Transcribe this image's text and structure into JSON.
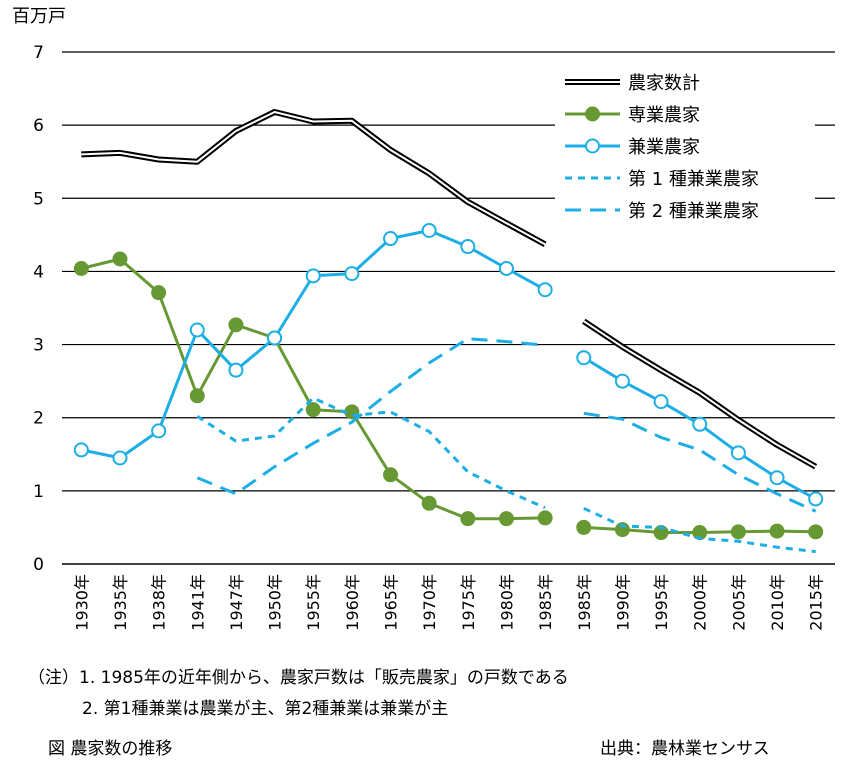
{
  "chart_data": {
    "type": "line",
    "y_unit_label": "百万戸",
    "ylim": [
      0,
      7
    ],
    "yticks": [
      0,
      1,
      2,
      3,
      4,
      5,
      6,
      7
    ],
    "grid": true,
    "legend_position": "top-right",
    "categories": [
      "1930年",
      "1935年",
      "1938年",
      "1941年",
      "1947年",
      "1950年",
      "1955年",
      "1960年",
      "1965年",
      "1970年",
      "1975年",
      "1980年",
      "1985年",
      "1985年",
      "1990年",
      "1995年",
      "2000年",
      "2005年",
      "2010年",
      "2015年"
    ],
    "series": [
      {
        "name": "農家数計",
        "color": "#000000",
        "style": "double",
        "values": [
          5.6,
          5.62,
          5.53,
          5.5,
          5.92,
          6.18,
          6.05,
          6.06,
          5.66,
          5.34,
          4.95,
          4.66,
          4.37,
          3.32,
          2.97,
          2.65,
          2.34,
          1.97,
          1.63,
          1.33
        ]
      },
      {
        "name": "専業農家",
        "color": "#669933",
        "style": "marker-filled",
        "values": [
          4.04,
          4.17,
          3.71,
          2.3,
          3.27,
          3.09,
          2.11,
          2.08,
          1.22,
          0.83,
          0.62,
          0.62,
          0.63,
          0.5,
          0.47,
          0.43,
          0.43,
          0.44,
          0.45,
          0.44
        ]
      },
      {
        "name": "兼業農家",
        "color": "#1CAEE4",
        "style": "marker-open",
        "values": [
          1.56,
          1.45,
          1.82,
          3.2,
          2.65,
          3.09,
          3.94,
          3.97,
          4.45,
          4.56,
          4.34,
          4.04,
          3.75,
          2.82,
          2.5,
          2.22,
          1.91,
          1.52,
          1.18,
          0.89
        ]
      },
      {
        "name": "第 1 種兼業農家",
        "color": "#1CAEE4",
        "style": "short-dash",
        "values": [
          null,
          null,
          null,
          2.02,
          1.68,
          1.75,
          2.27,
          2.03,
          2.08,
          1.81,
          1.26,
          1.0,
          0.77,
          0.76,
          0.52,
          0.5,
          0.35,
          0.31,
          0.23,
          0.17
        ]
      },
      {
        "name": "第 2 種兼業農家",
        "color": "#1CAEE4",
        "style": "long-dash",
        "values": [
          null,
          null,
          null,
          1.18,
          0.96,
          1.33,
          1.65,
          1.94,
          2.36,
          2.75,
          3.08,
          3.04,
          2.99,
          2.06,
          1.98,
          1.73,
          1.56,
          1.22,
          0.96,
          0.72
        ]
      }
    ],
    "segments": [
      [
        0,
        12
      ],
      [
        13,
        19
      ]
    ]
  },
  "notes": {
    "line1": "（注）1.  1985年の近年側から、農家戸数は「販売農家」の戸数である",
    "line2": "2.  第1種兼業は農業が主、第2種兼業は兼業が主"
  },
  "caption": "図   農家数の推移",
  "source": "出典：農林業センサス"
}
